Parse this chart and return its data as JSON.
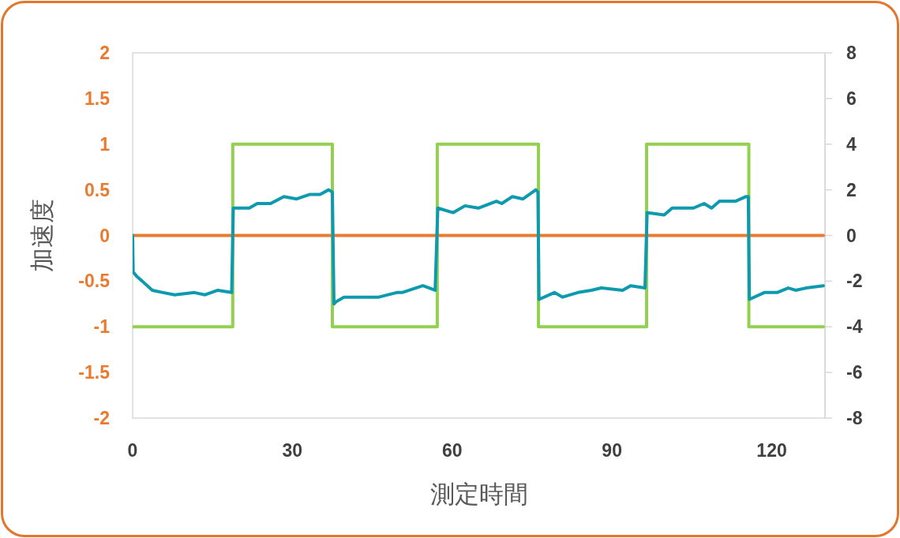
{
  "chart_data": {
    "type": "line",
    "xlabel": "測定時間",
    "ylabel": "加速度",
    "xlim": [
      0,
      130
    ],
    "xticks": [
      0,
      30,
      60,
      90,
      120
    ],
    "ylim": [
      -2,
      2
    ],
    "yticks": [
      -2,
      -1.5,
      -1,
      -0.5,
      0,
      0.5,
      1,
      1.5,
      2
    ],
    "y2lim": [
      -8,
      8
    ],
    "y2ticks": [
      -8,
      -6,
      -4,
      -2,
      0,
      2,
      4,
      6,
      8
    ],
    "series": [
      {
        "color": "#92d050",
        "axis": "y2",
        "x": [
          0,
          18.8,
          18.8,
          37.5,
          37.5,
          57.2,
          57.2,
          76.2,
          76.2,
          96.5,
          96.5,
          115.7,
          115.7,
          129.7
        ],
        "values": [
          -4,
          -4,
          4,
          4,
          -4,
          -4,
          4,
          4,
          -4,
          -4,
          4,
          4,
          -4,
          -4
        ]
      },
      {
        "color": "#e97a2e",
        "axis": "y",
        "x": [
          0,
          129.7
        ],
        "values": [
          0,
          0
        ]
      },
      {
        "color": "#0e9aae",
        "axis": "y2",
        "x": [
          0,
          0.1,
          0.8,
          1.8,
          3.7,
          5.7,
          7.9,
          11.6,
          13.6,
          16.0,
          18.6,
          18.9,
          21.9,
          23.4,
          25.9,
          28.4,
          30.8,
          33.3,
          35.2,
          36.8,
          37.5,
          37.8,
          38.2,
          39.7,
          43.2,
          46.2,
          49.6,
          50.6,
          54.5,
          56.8,
          57.3,
          60.2,
          62.4,
          64.9,
          68.3,
          69.3,
          71.3,
          73.3,
          75.7,
          76.1,
          76.3,
          79.2,
          80.7,
          83.6,
          86.1,
          88.0,
          92.0,
          93.5,
          96.2,
          96.6,
          99.8,
          101.3,
          105.3,
          107.3,
          108.7,
          110.2,
          113.2,
          115.1,
          115.6,
          115.8,
          118.6,
          121.0,
          123.1,
          124.5,
          126.5,
          129.7
        ],
        "values": [
          0,
          -1.6,
          -1.8,
          -2.0,
          -2.4,
          -2.5,
          -2.6,
          -2.5,
          -2.6,
          -2.4,
          -2.5,
          1.2,
          1.2,
          1.4,
          1.4,
          1.7,
          1.6,
          1.8,
          1.8,
          2.0,
          1.9,
          -3.0,
          -2.9,
          -2.7,
          -2.7,
          -2.7,
          -2.5,
          -2.5,
          -2.2,
          -2.4,
          1.2,
          1.0,
          1.3,
          1.2,
          1.5,
          1.4,
          1.7,
          1.6,
          2.0,
          1.9,
          -2.8,
          -2.5,
          -2.7,
          -2.5,
          -2.4,
          -2.3,
          -2.4,
          -2.2,
          -2.3,
          1.0,
          0.9,
          1.2,
          1.2,
          1.4,
          1.2,
          1.5,
          1.5,
          1.7,
          1.7,
          -2.8,
          -2.5,
          -2.5,
          -2.3,
          -2.4,
          -2.3,
          -2.2
        ]
      }
    ]
  }
}
